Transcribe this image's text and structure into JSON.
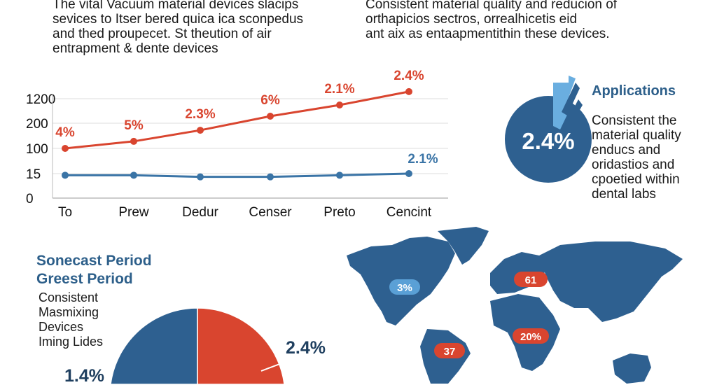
{
  "intro": {
    "left": "The vital Vacuum material devices slacips\nsevices to Itser bered quica ica sconpedus\nand thed proupecet. St theution of air\nentrapment & dente devices",
    "right": "Consistent material quality and reducion of\northapicios sectros, orrealhicetis eid\nant aix as entaapmentithin these devices."
  },
  "chart_data": [
    {
      "type": "line",
      "categories": [
        "To",
        "Prew",
        "Dedur",
        "Censer",
        "Preto",
        "Cencint"
      ],
      "y_ticks": [
        "0",
        "15",
        "100",
        "200",
        "1200"
      ],
      "grid": true,
      "series": [
        {
          "color": "#d9452f",
          "values": [
            100,
            128,
            172,
            486,
            943,
            1490
          ],
          "labels": [
            "4%",
            "5%",
            "2.3%",
            "6%",
            "2.1%",
            "2.4%"
          ]
        },
        {
          "color": "#3a74a6",
          "values": [
            14,
            14,
            13,
            13,
            14,
            15
          ],
          "labels": [
            "",
            "",
            "",
            "",
            "",
            "2.1%"
          ]
        }
      ]
    },
    {
      "type": "pie",
      "slices": [
        {
          "label": "1.4%",
          "value": 50,
          "color": "#2e6090"
        },
        {
          "label": "2.4%",
          "value": 50,
          "color": "#d9452f"
        }
      ]
    }
  ],
  "applications": {
    "title": "Applications",
    "value": "2.4%",
    "text": "Consistent the\nmaterial quality\nenducs and\noridastios and\ncpoetied within\ndental labs",
    "color": "#2e6090"
  },
  "period": {
    "title": "Sonecast Period\nGreest Period",
    "text": "Consistent\nMasmixing\nDevices\nIming Lides"
  },
  "map": {
    "land_color": "#2e6090",
    "markers": [
      {
        "label": "3%",
        "color": "#5aa0d6"
      },
      {
        "label": "61",
        "color": "#d9452f"
      },
      {
        "label": "20%",
        "color": "#d9452f"
      },
      {
        "label": "37",
        "color": "#d9452f"
      }
    ]
  }
}
